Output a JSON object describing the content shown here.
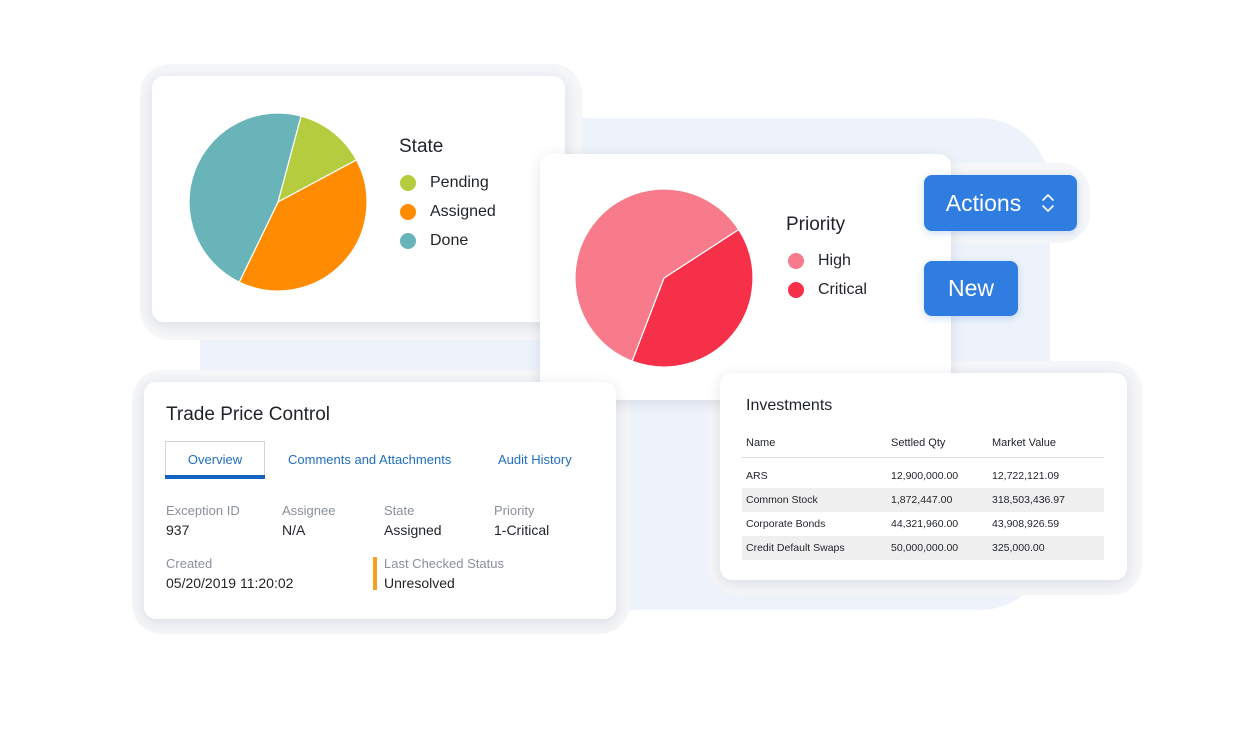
{
  "state_chart": {
    "legend_title": "State",
    "legend": [
      {
        "label": "Pending",
        "color": "#b5cc3f"
      },
      {
        "label": "Assigned",
        "color": "#ff8c00"
      },
      {
        "label": "Done",
        "color": "#68b4b9"
      }
    ],
    "chart_data": {
      "type": "pie",
      "title": "State",
      "slices": [
        {
          "label": "Pending",
          "value": 13,
          "color": "#b5cc3f"
        },
        {
          "label": "Assigned",
          "value": 40,
          "color": "#ff8c00"
        },
        {
          "label": "Done",
          "value": 47,
          "color": "#68b4b9"
        }
      ]
    }
  },
  "priority_chart": {
    "legend_title": "Priority",
    "legend": [
      {
        "label": "High",
        "color": "#f77b8b"
      },
      {
        "label": "Critical",
        "color": "#f7304a"
      }
    ],
    "chart_data": {
      "type": "pie",
      "title": "Priority",
      "slices": [
        {
          "label": "Critical",
          "value": 40,
          "color": "#f7304a"
        },
        {
          "label": "High",
          "value": 60,
          "color": "#f77b8b"
        }
      ]
    }
  },
  "actions": {
    "actions_label": "Actions",
    "new_label": "New",
    "accent": "#2f7de1"
  },
  "trade_price_control": {
    "title": "Trade Price Control",
    "tabs": [
      "Overview",
      "Comments and Attachments",
      "Audit History"
    ],
    "active_tab": "Overview",
    "fields": {
      "exception_id": {
        "label": "Exception ID",
        "value": "937"
      },
      "assignee": {
        "label": "Assignee",
        "value": "N/A"
      },
      "state": {
        "label": "State",
        "value": "Assigned"
      },
      "priority": {
        "label": "Priority",
        "value": "1-Critical"
      },
      "created": {
        "label": "Created",
        "value": "05/20/2019 11:20:02"
      },
      "last_checked": {
        "label": "Last Checked Status",
        "value": "Unresolved"
      }
    },
    "status_color": "#f5a01e"
  },
  "investments": {
    "title": "Investments",
    "columns": [
      "Name",
      "Settled Qty",
      "Market Value"
    ],
    "rows": [
      [
        "ARS",
        "12,900,000.00",
        "12,722,121.09"
      ],
      [
        "Common Stock",
        "1,872,447.00",
        "318,503,436.97"
      ],
      [
        "Corporate Bonds",
        "44,321,960.00",
        "43,908,926.59"
      ],
      [
        "Credit Default Swaps",
        "50,000,000.00",
        "325,000.00"
      ]
    ]
  }
}
